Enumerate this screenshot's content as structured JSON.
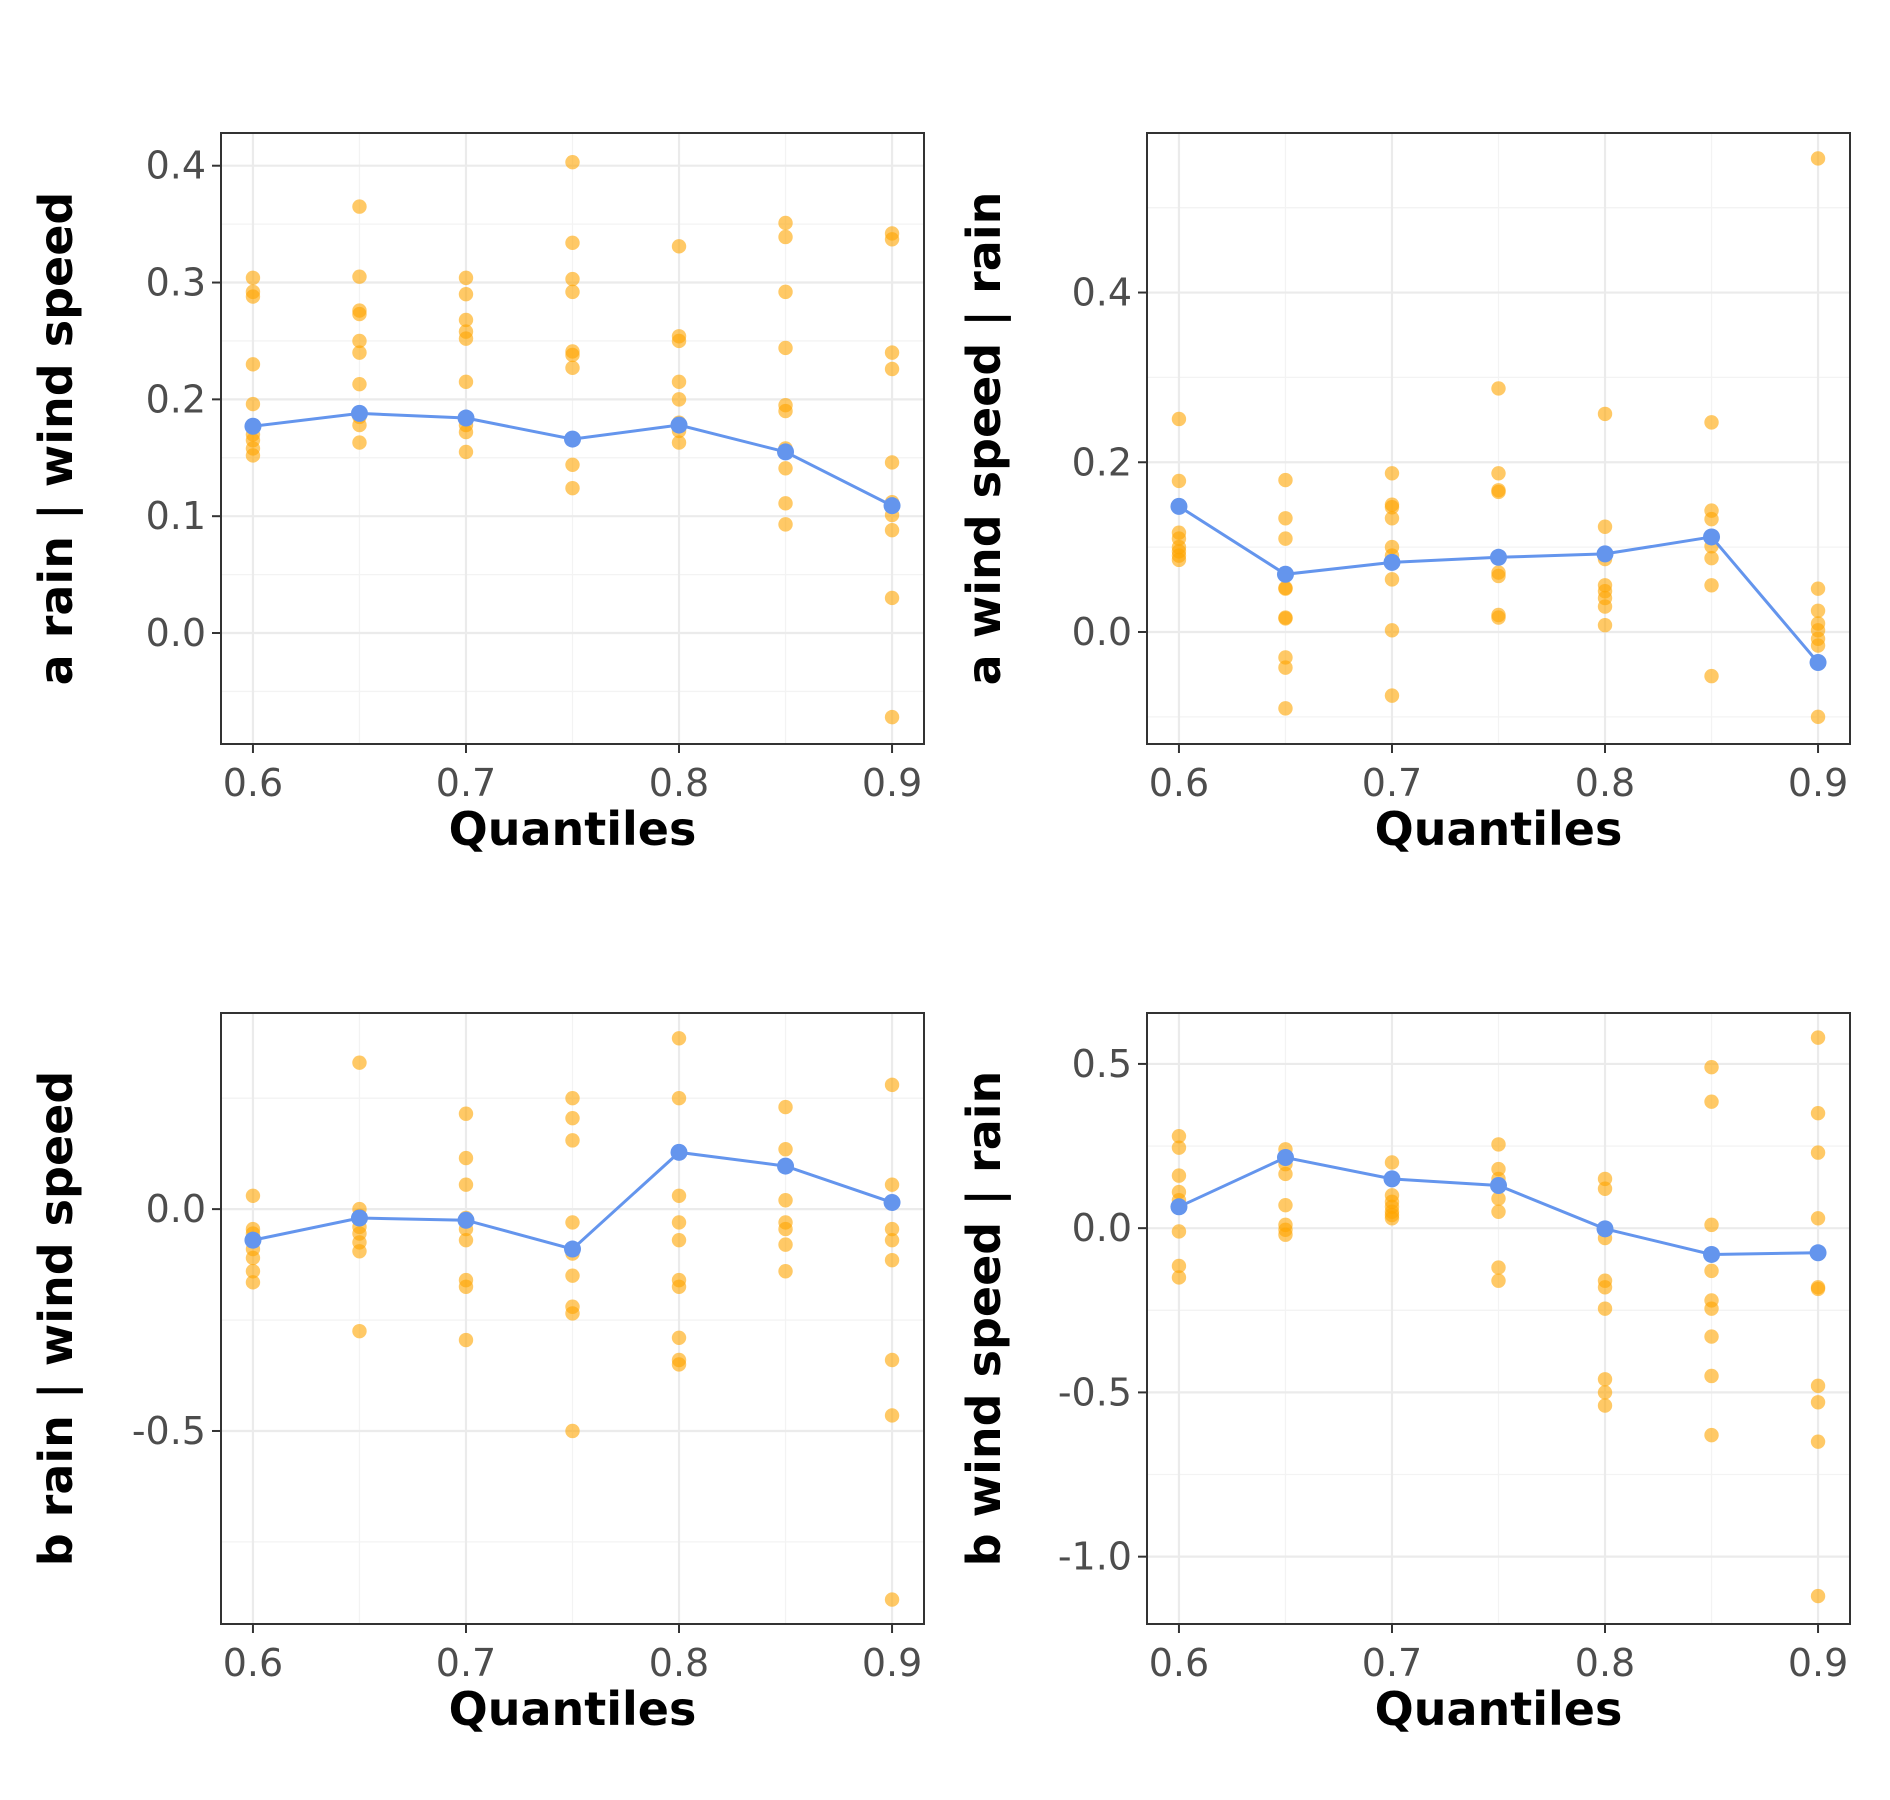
{
  "chart_data": [
    {
      "type": "scatter",
      "xlabel": "Quantiles",
      "ylabel": "a rain | wind speed",
      "xlim": [
        0.585,
        0.915
      ],
      "ylim": [
        -0.095,
        0.428
      ],
      "x_ticks": [
        0.6,
        0.7,
        0.8,
        0.9
      ],
      "x_tick_labels": [
        "0.6",
        "0.7",
        "0.8",
        "0.9"
      ],
      "y_ticks": [
        0.0,
        0.1,
        0.2,
        0.3,
        0.4
      ],
      "y_tick_labels": [
        "0.0",
        "0.1",
        "0.2",
        "0.3",
        "0.4"
      ],
      "grid": true,
      "colors": {
        "points": "#FFA500",
        "line": "#6495ED"
      },
      "points": [
        {
          "x": 0.6,
          "values": [
            0.304,
            0.292,
            0.288,
            0.23,
            0.196,
            0.17,
            0.165,
            0.158,
            0.152
          ]
        },
        {
          "x": 0.65,
          "values": [
            0.365,
            0.305,
            0.276,
            0.273,
            0.25,
            0.24,
            0.213,
            0.185,
            0.178,
            0.163
          ]
        },
        {
          "x": 0.7,
          "values": [
            0.304,
            0.29,
            0.268,
            0.258,
            0.252,
            0.215,
            0.178,
            0.172,
            0.155
          ]
        },
        {
          "x": 0.75,
          "values": [
            0.403,
            0.334,
            0.303,
            0.292,
            0.241,
            0.238,
            0.227,
            0.144,
            0.124
          ]
        },
        {
          "x": 0.8,
          "values": [
            0.331,
            0.254,
            0.25,
            0.215,
            0.2,
            0.18,
            0.173,
            0.163
          ]
        },
        {
          "x": 0.85,
          "values": [
            0.351,
            0.339,
            0.292,
            0.244,
            0.195,
            0.19,
            0.158,
            0.141,
            0.111,
            0.093
          ]
        },
        {
          "x": 0.9,
          "values": [
            0.342,
            0.337,
            0.24,
            0.226,
            0.146,
            0.112,
            0.101,
            0.088,
            0.03,
            -0.072
          ]
        }
      ],
      "series": [
        {
          "x": [
            0.6,
            0.65,
            0.7,
            0.75,
            0.8,
            0.85,
            0.9
          ],
          "values": [
            0.177,
            0.188,
            0.184,
            0.166,
            0.178,
            0.155,
            0.109
          ]
        }
      ]
    },
    {
      "type": "scatter",
      "xlabel": "Quantiles",
      "ylabel": "a wind speed | rain",
      "xlim": [
        0.585,
        0.915
      ],
      "ylim": [
        -0.132,
        0.588
      ],
      "x_ticks": [
        0.6,
        0.7,
        0.8,
        0.9
      ],
      "x_tick_labels": [
        "0.6",
        "0.7",
        "0.8",
        "0.9"
      ],
      "y_ticks": [
        0.0,
        0.2,
        0.4
      ],
      "y_tick_labels": [
        "0.0",
        "0.2",
        "0.4"
      ],
      "grid": true,
      "colors": {
        "points": "#FFA500",
        "line": "#6495ED"
      },
      "points": [
        {
          "x": 0.6,
          "values": [
            0.251,
            0.178,
            0.117,
            0.11,
            0.1,
            0.095,
            0.09,
            0.085
          ]
        },
        {
          "x": 0.65,
          "values": [
            0.179,
            0.134,
            0.11,
            0.052,
            0.051,
            0.017,
            0.016,
            -0.03,
            -0.042,
            -0.09
          ]
        },
        {
          "x": 0.7,
          "values": [
            0.187,
            0.15,
            0.147,
            0.134,
            0.1,
            0.09,
            0.082,
            0.062,
            0.002,
            -0.075
          ]
        },
        {
          "x": 0.75,
          "values": [
            0.287,
            0.187,
            0.167,
            0.165,
            0.07,
            0.066,
            0.02,
            0.017
          ]
        },
        {
          "x": 0.8,
          "values": [
            0.257,
            0.124,
            0.086,
            0.055,
            0.048,
            0.04,
            0.03,
            0.008
          ]
        },
        {
          "x": 0.85,
          "values": [
            0.247,
            0.143,
            0.133,
            0.101,
            0.087,
            0.055,
            -0.052
          ]
        },
        {
          "x": 0.9,
          "values": [
            0.558,
            0.051,
            0.025,
            0.01,
            0.002,
            -0.008,
            -0.016,
            -0.1
          ]
        }
      ],
      "series": [
        {
          "x": [
            0.6,
            0.65,
            0.7,
            0.75,
            0.8,
            0.85,
            0.9
          ],
          "values": [
            0.148,
            0.068,
            0.082,
            0.088,
            0.092,
            0.112,
            -0.036
          ]
        }
      ]
    },
    {
      "type": "scatter",
      "xlabel": "Quantiles",
      "ylabel": "b rain | wind speed",
      "xlim": [
        0.585,
        0.915
      ],
      "ylim": [
        -0.935,
        0.442
      ],
      "x_ticks": [
        0.6,
        0.7,
        0.8,
        0.9
      ],
      "x_tick_labels": [
        "0.6",
        "0.7",
        "0.8",
        "0.9"
      ],
      "y_ticks": [
        0.0,
        -0.5
      ],
      "y_tick_labels": [
        "0.0",
        "-0.5"
      ],
      "grid": true,
      "colors": {
        "points": "#FFA500",
        "line": "#6495ED"
      },
      "points": [
        {
          "x": 0.6,
          "values": [
            0.03,
            -0.045,
            -0.055,
            -0.09,
            -0.11,
            -0.14,
            -0.165
          ]
        },
        {
          "x": 0.65,
          "values": [
            0.33,
            0.0,
            -0.015,
            -0.04,
            -0.055,
            -0.075,
            -0.095,
            -0.275
          ]
        },
        {
          "x": 0.7,
          "values": [
            0.215,
            0.115,
            0.055,
            -0.02,
            -0.045,
            -0.07,
            -0.16,
            -0.175,
            -0.295
          ]
        },
        {
          "x": 0.75,
          "values": [
            0.25,
            0.205,
            0.155,
            -0.03,
            -0.1,
            -0.15,
            -0.22,
            -0.235,
            -0.5
          ]
        },
        {
          "x": 0.8,
          "values": [
            0.385,
            0.25,
            0.03,
            -0.03,
            -0.07,
            -0.16,
            -0.175,
            -0.29,
            -0.34,
            -0.35
          ]
        },
        {
          "x": 0.85,
          "values": [
            0.23,
            0.135,
            0.095,
            0.02,
            -0.03,
            -0.045,
            -0.08,
            -0.14
          ]
        },
        {
          "x": 0.9,
          "values": [
            0.28,
            0.055,
            -0.045,
            -0.07,
            -0.115,
            -0.34,
            -0.465,
            -0.88
          ]
        }
      ],
      "series": [
        {
          "x": [
            0.6,
            0.65,
            0.7,
            0.75,
            0.8,
            0.85,
            0.9
          ],
          "values": [
            -0.07,
            -0.02,
            -0.025,
            -0.09,
            0.128,
            0.097,
            0.015
          ]
        }
      ]
    },
    {
      "type": "scatter",
      "xlabel": "Quantiles",
      "ylabel": "b wind speed | rain",
      "xlim": [
        0.585,
        0.915
      ],
      "ylim": [
        -1.205,
        0.655
      ],
      "x_ticks": [
        0.6,
        0.7,
        0.8,
        0.9
      ],
      "x_tick_labels": [
        "0.6",
        "0.7",
        "0.8",
        "0.9"
      ],
      "y_ticks": [
        0.5,
        0.0,
        -0.5,
        -1.0
      ],
      "y_tick_labels": [
        "0.5",
        "0.0",
        "-0.5",
        "-1.0"
      ],
      "grid": true,
      "colors": {
        "points": "#FFA500",
        "line": "#6495ED"
      },
      "points": [
        {
          "x": 0.6,
          "values": [
            0.28,
            0.245,
            0.16,
            0.11,
            0.085,
            -0.01,
            -0.115,
            -0.15
          ]
        },
        {
          "x": 0.65,
          "values": [
            0.24,
            0.215,
            0.195,
            0.165,
            0.07,
            0.01,
            -0.005,
            -0.02
          ]
        },
        {
          "x": 0.7,
          "values": [
            0.2,
            0.15,
            0.1,
            0.08,
            0.065,
            0.05,
            0.04,
            0.03
          ]
        },
        {
          "x": 0.75,
          "values": [
            0.255,
            0.18,
            0.15,
            0.09,
            0.05,
            -0.12,
            -0.16
          ]
        },
        {
          "x": 0.8,
          "values": [
            0.15,
            0.12,
            -0.03,
            -0.16,
            -0.18,
            -0.245,
            -0.46,
            -0.5,
            -0.54
          ]
        },
        {
          "x": 0.85,
          "values": [
            0.49,
            0.385,
            0.01,
            -0.08,
            -0.13,
            -0.22,
            -0.245,
            -0.33,
            -0.45,
            -0.63
          ]
        },
        {
          "x": 0.9,
          "values": [
            0.58,
            0.35,
            0.23,
            0.03,
            -0.18,
            -0.185,
            -0.48,
            -0.53,
            -0.65,
            -1.12
          ]
        }
      ],
      "series": [
        {
          "x": [
            0.6,
            0.65,
            0.7,
            0.75,
            0.8,
            0.85,
            0.9
          ],
          "values": [
            0.065,
            0.215,
            0.15,
            0.13,
            -0.002,
            -0.08,
            -0.075
          ]
        }
      ]
    }
  ]
}
